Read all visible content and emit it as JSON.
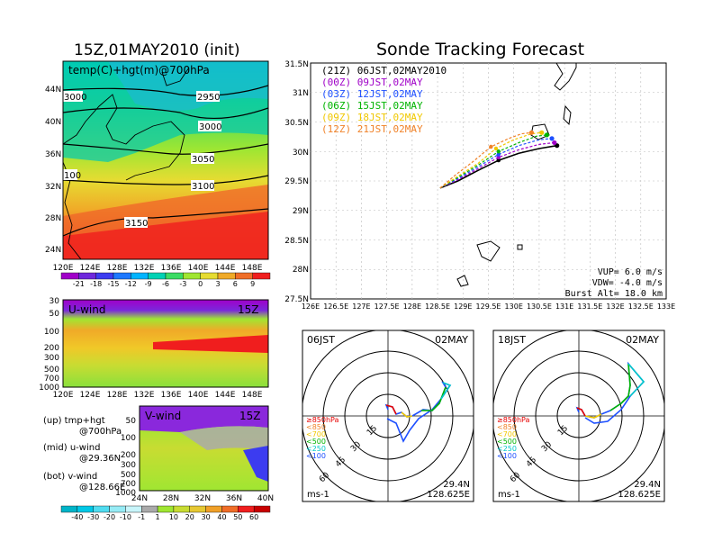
{
  "left_title": "15Z,01MAY2010 (init)",
  "main_title": "Sonde Tracking Forecast",
  "map700": {
    "label": "temp(C)+hgt(m)@700hPa",
    "lat_ticks": [
      "44N",
      "40N",
      "36N",
      "32N",
      "28N",
      "24N"
    ],
    "lon_ticks": [
      "120E",
      "124E",
      "128E",
      "132E",
      "136E",
      "140E",
      "144E",
      "148E"
    ],
    "contours": [
      "3000",
      "2950",
      "3000",
      "3050",
      "100",
      "3100",
      "3150"
    ]
  },
  "temp_colorbar": {
    "labels": [
      "-21",
      "-18",
      "-15",
      "-12",
      "-9",
      "-6",
      "-3",
      "0",
      "3",
      "6",
      "9"
    ],
    "colors": [
      "#a000c8",
      "#6e28dc",
      "#3c3cf0",
      "#1e78ff",
      "#00b4ff",
      "#00d2b4",
      "#3cdc64",
      "#a0e632",
      "#e6dc32",
      "#f0aa28",
      "#f06e28",
      "#f01e1e"
    ]
  },
  "uwind": {
    "label": "U-wind",
    "time": "15Z",
    "p_ticks": [
      "30",
      "50",
      "100",
      "200",
      "300",
      "500",
      "700",
      "1000"
    ],
    "lon_ticks": [
      "120E",
      "124E",
      "128E",
      "132E",
      "136E",
      "140E",
      "144E",
      "148E"
    ]
  },
  "vwind": {
    "label": "V-wind",
    "time": "15Z",
    "p_ticks": [
      "50",
      "100",
      "200",
      "300",
      "500",
      "700",
      "1000"
    ],
    "lat_ticks": [
      "24N",
      "28N",
      "32N",
      "36N",
      "40N"
    ]
  },
  "legend_notes": [
    {
      "line1": "(up) tmp+hgt",
      "line2": "@700hPa"
    },
    {
      "line1": "(mid) u-wind",
      "line2": "@29.36N"
    },
    {
      "line1": "(bot) v-wind",
      "line2": "@128.66E"
    }
  ],
  "wind_colorbar": {
    "labels": [
      "-40",
      "-30",
      "-20",
      "-10",
      "-1",
      "1",
      "10",
      "20",
      "30",
      "40",
      "50",
      "60"
    ],
    "colors": [
      "#00b4c8",
      "#00c8e6",
      "#50dcf0",
      "#96ebf5",
      "#c8f5fa",
      "#aaaaaa",
      "#a0e632",
      "#c8dc32",
      "#e6c832",
      "#f0a028",
      "#f06e28",
      "#f01e1e",
      "#c80000"
    ]
  },
  "track_map": {
    "lat_ticks": [
      "31.5N",
      "31N",
      "30.5N",
      "30N",
      "29.5N",
      "29N",
      "28.5N",
      "28N",
      "27.5N"
    ],
    "lon_ticks": [
      "126E",
      "126.5E",
      "127E",
      "127.5E",
      "128E",
      "128.5E",
      "129E",
      "129.5E",
      "130E",
      "130.5E",
      "131E",
      "131.5E",
      "132E",
      "132.5E",
      "133E"
    ],
    "vup": "VUP=  6.0  m/s",
    "vdw": "VDW= -4.0  m/s",
    "burst": "Burst Alt=  18.0  km"
  },
  "legend": [
    {
      "text": "(21Z) 06JST,02MAY2010",
      "color": "#000000"
    },
    {
      "text": "(00Z) 09JST,02MAY",
      "color": "#a000c8"
    },
    {
      "text": "(03Z) 12JST,02MAY",
      "color": "#1e50ff"
    },
    {
      "text": "(06Z) 15JST,02MAY",
      "color": "#00b400"
    },
    {
      "text": "(09Z) 18JST,02MAY",
      "color": "#f0c800"
    },
    {
      "text": "(12Z) 21JST,02MAY",
      "color": "#f08228"
    }
  ],
  "chart_data": {
    "type": "line",
    "title": "Sonde Tracking Forecast",
    "xlim": [
      126,
      133
    ],
    "ylim": [
      27.5,
      31.5
    ],
    "series": [
      {
        "name": "(21Z) 06JST,02MAY2010",
        "color": "#000000",
        "x": [
          128.55,
          128.9,
          129.3,
          129.7,
          130.1,
          130.5,
          130.85
        ],
        "y": [
          29.38,
          29.5,
          29.68,
          29.85,
          29.97,
          30.05,
          30.1
        ]
      },
      {
        "name": "(00Z) 09JST,02MAY",
        "color": "#a000c8",
        "x": [
          128.55,
          128.9,
          129.3,
          129.7,
          130.1,
          130.5,
          130.8
        ],
        "y": [
          29.38,
          29.52,
          29.71,
          29.9,
          30.03,
          30.12,
          30.15
        ]
      },
      {
        "name": "(03Z) 12JST,02MAY",
        "color": "#1e50ff",
        "x": [
          128.55,
          128.9,
          129.3,
          129.7,
          130.1,
          130.5,
          130.75
        ],
        "y": [
          29.38,
          29.54,
          29.74,
          29.95,
          30.1,
          30.2,
          30.22
        ]
      },
      {
        "name": "(06Z) 15JST,02MAY",
        "color": "#00b400",
        "x": [
          128.55,
          128.9,
          129.3,
          129.7,
          130.1,
          130.45,
          130.65
        ],
        "y": [
          29.38,
          29.56,
          29.77,
          30.0,
          30.15,
          30.26,
          30.28
        ]
      },
      {
        "name": "(09Z) 18JST,02MAY",
        "color": "#f0c800",
        "x": [
          128.55,
          128.9,
          129.3,
          129.65,
          130.0,
          130.35,
          130.55
        ],
        "y": [
          29.38,
          29.58,
          29.8,
          30.05,
          30.2,
          30.3,
          30.32
        ]
      },
      {
        "name": "(12Z) 21JST,02MAY",
        "color": "#f08228",
        "x": [
          128.55,
          128.85,
          129.2,
          129.55,
          129.9,
          130.15,
          130.35
        ],
        "y": [
          29.38,
          29.6,
          29.83,
          30.08,
          30.22,
          30.3,
          30.32
        ]
      }
    ]
  },
  "polar1": {
    "label_left": "06JST",
    "label_right": "02MAY",
    "rings": [
      "15",
      "30",
      "45",
      "60"
    ],
    "level_key": [
      "≥850hPa",
      "<850",
      "<700",
      "<500",
      "<250",
      "<100"
    ],
    "level_colors": [
      "#e60000",
      "#f08228",
      "#f0c800",
      "#00b400",
      "#00c8c8",
      "#1e50ff"
    ],
    "units": "ms-1",
    "lat": "29.4N",
    "lon": "128.625E"
  },
  "polar2": {
    "label_left": "18JST",
    "label_right": "02MAY",
    "rings": [
      "15",
      "30",
      "45",
      "60"
    ],
    "level_key": [
      "≥850hPa",
      "<850",
      "<700",
      "<500",
      "<250",
      "<100"
    ],
    "level_colors": [
      "#e60000",
      "#f08228",
      "#f0c800",
      "#00b400",
      "#00c8c8",
      "#1e50ff"
    ],
    "units": "ms-1",
    "lat": "29.4N",
    "lon": "128.625E"
  }
}
